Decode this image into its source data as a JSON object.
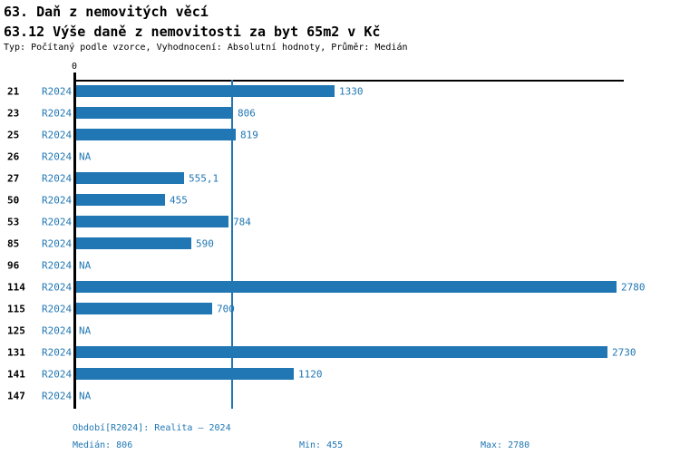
{
  "header": {
    "title": "63. Daň z nemovitých věcí",
    "subtitle": "63.12 Výše daně z nemovitosti za byt 65m2 v Kč",
    "meta_line": "Typ: Počítaný podle vzorce, Vyhodnocení: Absolutní hodnoty, Průměr: Medián"
  },
  "colors": {
    "bar": "#2077b4",
    "blue_text": "#2077b4",
    "axis": "#000000"
  },
  "chart_data": {
    "type": "bar",
    "orientation": "horizontal",
    "title": "63.12 Výše daně z nemovitosti za byt 65m2 v Kč",
    "categories": [
      "21",
      "23",
      "25",
      "26",
      "27",
      "50",
      "53",
      "85",
      "96",
      "114",
      "115",
      "125",
      "131",
      "141",
      "147"
    ],
    "series_label": "R2024",
    "values": [
      1330,
      806,
      819,
      null,
      555.1,
      455,
      784,
      590,
      null,
      2780,
      700,
      null,
      2730,
      1120,
      null
    ],
    "value_labels": [
      "1330",
      "806",
      "819",
      "NA",
      "555,1",
      "455",
      "784",
      "590",
      "NA",
      "2780",
      "700",
      "NA",
      "2730",
      "1120",
      "NA"
    ],
    "na_text": "NA",
    "xlim": [
      0,
      2780
    ],
    "x_axis_ticks": [
      "0"
    ],
    "median_line_value": 806,
    "grid": false,
    "legend": "none"
  },
  "footer": {
    "period": "Období[R2024]: Realita – 2024",
    "median": "Medián: 806",
    "min": "Min: 455",
    "max": "Max: 2780"
  }
}
